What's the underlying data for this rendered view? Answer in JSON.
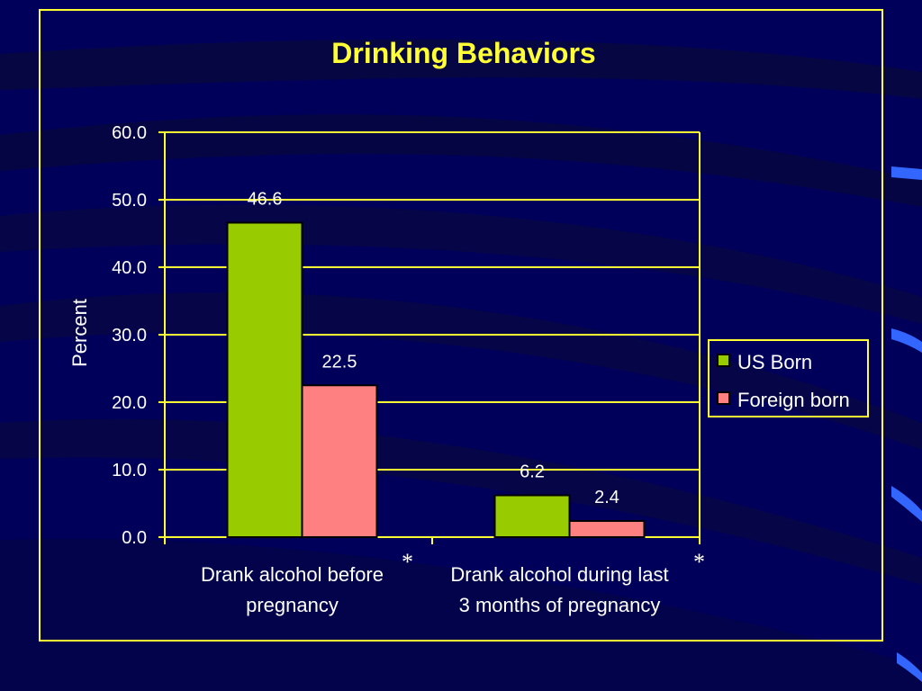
{
  "chart_data": {
    "type": "bar",
    "title": "Drinking Behaviors",
    "ylabel": "Percent",
    "ylim": [
      0,
      60
    ],
    "yticks": [
      "0.0",
      "10.0",
      "20.0",
      "30.0",
      "40.0",
      "50.0",
      "60.0"
    ],
    "categories": [
      [
        "Drank alcohol before",
        "pregnancy"
      ],
      [
        "Drank alcohol during last",
        "3 months of pregnancy"
      ]
    ],
    "category_markers": [
      "*",
      "*"
    ],
    "series": [
      {
        "name": "US Born",
        "values": [
          46.6,
          6.2
        ],
        "labels": [
          "46.6",
          "6.2"
        ],
        "color": "#99cc00"
      },
      {
        "name": "Foreign born",
        "values": [
          22.5,
          2.4
        ],
        "labels": [
          "22.5",
          "2.4"
        ],
        "color": "#ff8080"
      }
    ],
    "grid": true,
    "legend": "right",
    "colors": {
      "background": "#00005a",
      "frame": "#ffff33",
      "axis": "#ffff33",
      "gridline": "#ffff33",
      "title": "#ffff33",
      "text": "#ffffff"
    }
  }
}
